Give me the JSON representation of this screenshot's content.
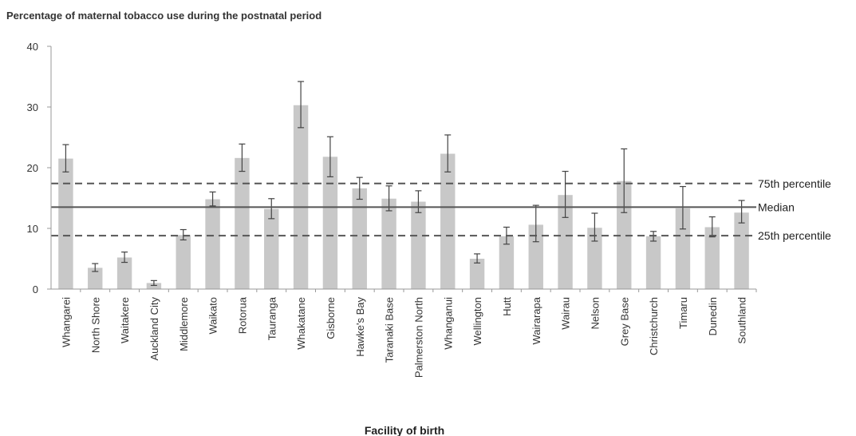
{
  "chart_data": {
    "type": "bar",
    "title": "Percentage of maternal tobacco use during the postnatal period",
    "xlabel": "Facility of birth",
    "ylabel": "",
    "ylim": [
      0,
      40
    ],
    "yticks": [
      0,
      10,
      20,
      30,
      40
    ],
    "grid": false,
    "bar_color": "#c8c8c8",
    "categories": [
      "Whangarei",
      "North Shore",
      "Waitakere",
      "Auckland City",
      "Middlemore",
      "Waikato",
      "Rotorua",
      "Tauranga",
      "Whakatane",
      "Gisborne",
      "Hawke's Bay",
      "Taranaki Base",
      "Palmerston North",
      "Whanganui",
      "Wellington",
      "Hutt",
      "Wairarapa",
      "Wairau",
      "Nelson",
      "Grey Base",
      "Christchurch",
      "Timaru",
      "Dunedin",
      "Southland"
    ],
    "values": [
      21.5,
      3.5,
      5.2,
      1.0,
      8.9,
      14.8,
      21.6,
      13.2,
      30.3,
      21.8,
      16.6,
      14.9,
      14.4,
      22.3,
      5.0,
      8.7,
      10.6,
      15.5,
      10.1,
      17.8,
      8.7,
      13.3,
      10.2,
      12.6
    ],
    "error_low": [
      19.3,
      2.9,
      4.4,
      0.6,
      8.1,
      13.7,
      19.4,
      11.6,
      26.6,
      18.5,
      14.8,
      12.9,
      12.6,
      19.3,
      4.3,
      7.4,
      7.8,
      11.8,
      7.9,
      12.6,
      7.9,
      9.9,
      8.6,
      10.9
    ],
    "error_high": [
      23.8,
      4.2,
      6.1,
      1.4,
      9.8,
      16.0,
      23.9,
      14.9,
      34.2,
      25.1,
      18.4,
      17.0,
      16.2,
      25.4,
      5.8,
      10.2,
      13.8,
      19.4,
      12.5,
      23.1,
      9.5,
      16.9,
      11.9,
      14.6
    ],
    "reference_lines": [
      {
        "label": "75th percentile",
        "value": 17.4,
        "style": "dashed"
      },
      {
        "label": "Median",
        "value": 13.5,
        "style": "solid"
      },
      {
        "label": "25th percentile",
        "value": 8.8,
        "style": "dashed"
      }
    ]
  }
}
